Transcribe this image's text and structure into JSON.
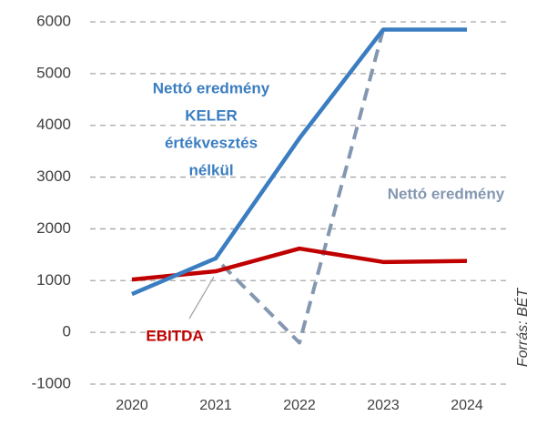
{
  "chart_data": {
    "type": "line",
    "categories": [
      "2020",
      "2021",
      "2022",
      "2023",
      "2024"
    ],
    "series": [
      {
        "name": "Nettó eredmény",
        "color": "#8497b0",
        "dashed": true,
        "values": [
          740,
          1430,
          -200,
          5850,
          5850
        ]
      },
      {
        "name": "EBITDA",
        "color": "#c00000",
        "dashed": false,
        "values": [
          1020,
          1180,
          1620,
          1360,
          1380
        ]
      },
      {
        "name": "Nettó eredmény KELER értékvesztés nélkül",
        "color": "#3a7dc1",
        "dashed": false,
        "values": [
          740,
          1430,
          3750,
          5850,
          5850
        ]
      }
    ],
    "annotations": {
      "blue_label": [
        "Nettó eredmény",
        "KELER",
        "értékvesztés",
        "nélkül"
      ],
      "dashed_label": "Nettó eredmény",
      "red_label": "EBITDA",
      "source": "Forrás: BÉT"
    },
    "ylim": [
      -1000,
      6000
    ],
    "yticks": [
      -1000,
      0,
      1000,
      2000,
      3000,
      4000,
      5000,
      6000
    ],
    "grid": true
  }
}
